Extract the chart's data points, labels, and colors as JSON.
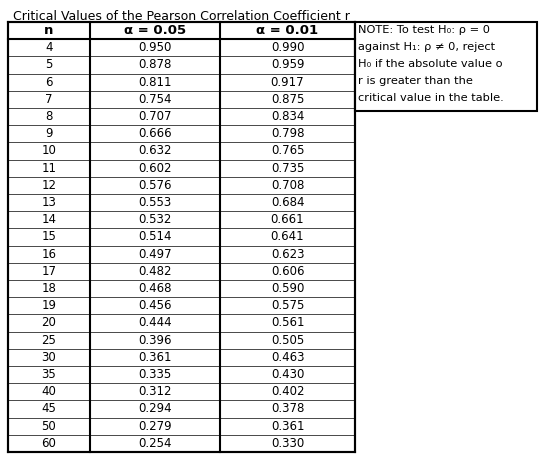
{
  "title": "Critical Values of the Pearson Correlation Coefficient r",
  "col_headers": [
    "n",
    "α = 0.05",
    "α = 0.01"
  ],
  "rows": [
    [
      4,
      0.95,
      0.99
    ],
    [
      5,
      0.878,
      0.959
    ],
    [
      6,
      0.811,
      0.917
    ],
    [
      7,
      0.754,
      0.875
    ],
    [
      8,
      0.707,
      0.834
    ],
    [
      9,
      0.666,
      0.798
    ],
    [
      10,
      0.632,
      0.765
    ],
    [
      11,
      0.602,
      0.735
    ],
    [
      12,
      0.576,
      0.708
    ],
    [
      13,
      0.553,
      0.684
    ],
    [
      14,
      0.532,
      0.661
    ],
    [
      15,
      0.514,
      0.641
    ],
    [
      16,
      0.497,
      0.623
    ],
    [
      17,
      0.482,
      0.606
    ],
    [
      18,
      0.468,
      0.59
    ],
    [
      19,
      0.456,
      0.575
    ],
    [
      20,
      0.444,
      0.561
    ],
    [
      25,
      0.396,
      0.505
    ],
    [
      30,
      0.361,
      0.463
    ],
    [
      35,
      0.335,
      0.43
    ],
    [
      40,
      0.312,
      0.402
    ],
    [
      45,
      0.294,
      0.378
    ],
    [
      50,
      0.279,
      0.361
    ],
    [
      60,
      0.254,
      0.33
    ]
  ],
  "note_lines": [
    "NOTE: To test H₀: ρ = 0",
    "against H₁: ρ ≠ 0, reject",
    "H₀ if the absolute value o",
    "r is greater than the",
    "critical value in the table."
  ],
  "background_color": "#ffffff",
  "font_size": 8.5,
  "title_font_size": 9.0,
  "note_font_size": 8.2,
  "header_font_size": 9.5
}
